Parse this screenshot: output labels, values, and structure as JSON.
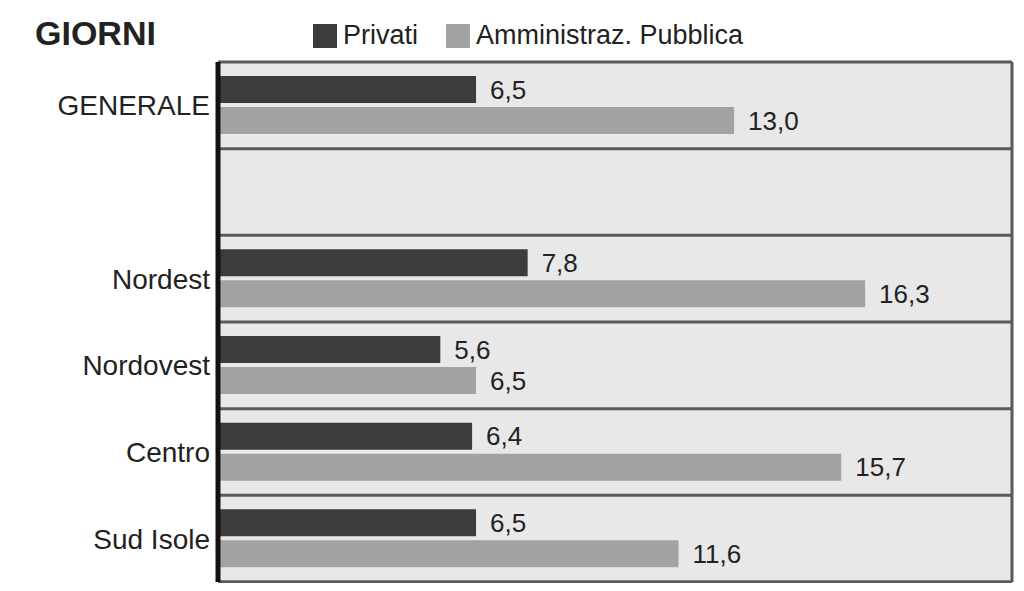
{
  "chart_data": {
    "type": "bar",
    "title": "GIORNI",
    "orientation": "horizontal",
    "categories": [
      "GENERALE",
      null,
      "Nordest",
      "Nordovest",
      "Centro",
      "Sud Isole"
    ],
    "series": [
      {
        "name": "Privati",
        "color": "#3c3c3c",
        "values": [
          6.5,
          null,
          7.8,
          5.6,
          6.4,
          6.5
        ],
        "value_labels": [
          "6,5",
          null,
          "7,8",
          "5,6",
          "6,4",
          "6,5"
        ]
      },
      {
        "name": "Amministraz. Pubblica",
        "color": "#a3a3a3",
        "values": [
          13.0,
          null,
          16.3,
          6.5,
          15.7,
          11.6
        ],
        "value_labels": [
          "13,0",
          null,
          "16,3",
          "6,5",
          "15,7",
          "11,6"
        ]
      }
    ],
    "xlim": [
      0,
      20
    ],
    "xticks": [
      0,
      5,
      10,
      15,
      20
    ],
    "grid": true,
    "data_labels": true,
    "tick_labels": "y",
    "legend": "top"
  }
}
